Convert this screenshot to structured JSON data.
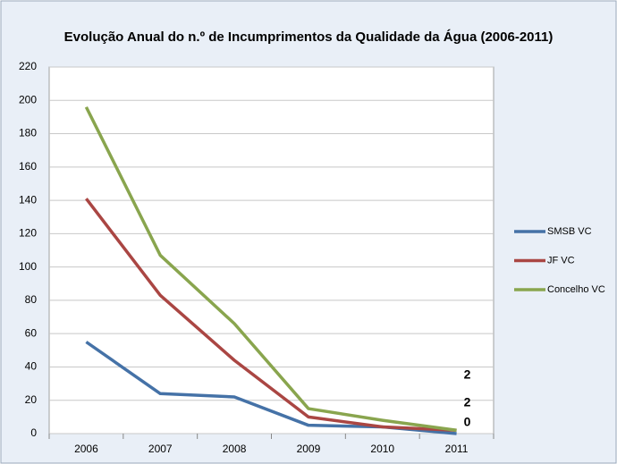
{
  "chart_data": {
    "type": "line",
    "title": "Evolução Anual do n.º de Incumprimentos da Qualidade da Água (2006-2011)",
    "categories": [
      "2006",
      "2007",
      "2008",
      "2009",
      "2010",
      "2011"
    ],
    "series": [
      {
        "name": "SMSB VC",
        "color": "#4572a7",
        "values": [
          55,
          24,
          22,
          5,
          4,
          0
        ]
      },
      {
        "name": "JF VC",
        "color": "#aa4643",
        "values": [
          141,
          83,
          44,
          10,
          4,
          2
        ]
      },
      {
        "name": "Concelho VC",
        "color": "#89a54e",
        "values": [
          196,
          107,
          66,
          15,
          8,
          2
        ]
      }
    ],
    "ylim": [
      0,
      220
    ],
    "yticks": [
      0,
      20,
      40,
      60,
      80,
      100,
      120,
      140,
      160,
      180,
      200,
      220
    ],
    "grid": true,
    "legend": "right",
    "data_labels": "last"
  }
}
